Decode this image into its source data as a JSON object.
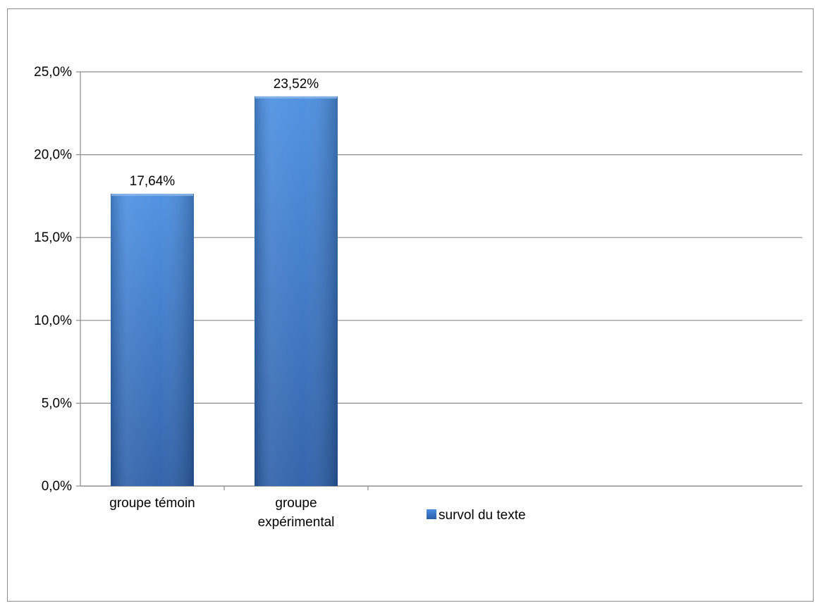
{
  "chart_data": {
    "type": "bar",
    "categories": [
      [
        "groupe témoin"
      ],
      [
        "groupe",
        "expérimental"
      ]
    ],
    "series": [
      {
        "name": "survol du texte",
        "values": [
          17.64,
          23.52
        ],
        "data_labels": [
          "17,64%",
          "23,52%"
        ],
        "color": "#3b78c9"
      }
    ],
    "ylim": [
      0,
      25
    ],
    "y_ticks": [
      {
        "value": 0,
        "label": "0,0%"
      },
      {
        "value": 5,
        "label": "5,0%"
      },
      {
        "value": 10,
        "label": "10,0%"
      },
      {
        "value": 15,
        "label": "15,0%"
      },
      {
        "value": 20,
        "label": "20,0%"
      },
      {
        "value": 25,
        "label": "25,0%"
      }
    ],
    "grid": true,
    "legend_position": "bottom-center"
  },
  "colors": {
    "bar_light": "#4a8ee0",
    "bar_dark": "#2c5ea8",
    "gridline": "#8c8c8c"
  }
}
